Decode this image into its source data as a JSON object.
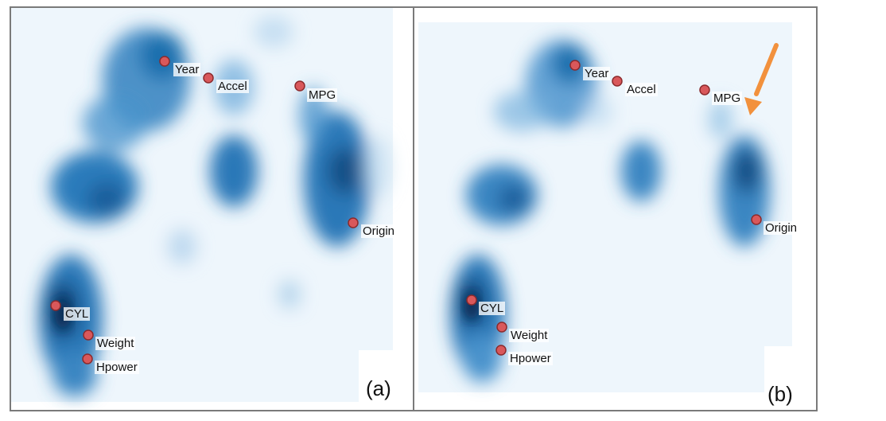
{
  "panels": [
    {
      "id": "a",
      "caption": "(a)",
      "dimensions": [
        "Year",
        "Accel",
        "MPG",
        "Origin",
        "CYL",
        "Weight",
        "Hpower"
      ]
    },
    {
      "id": "b",
      "caption": "(b)",
      "dimensions": [
        "Year",
        "Accel",
        "MPG",
        "Origin",
        "CYL",
        "Weight",
        "Hpower"
      ]
    }
  ],
  "colors": {
    "density": "#1f6fae",
    "density_dark": "#0b3f73",
    "background": "#eef6fc",
    "marker_fill": "#d9585b",
    "marker_stroke": "#8c2a2c",
    "arrow": "#f2913d",
    "frame": "#7a7a7a"
  }
}
